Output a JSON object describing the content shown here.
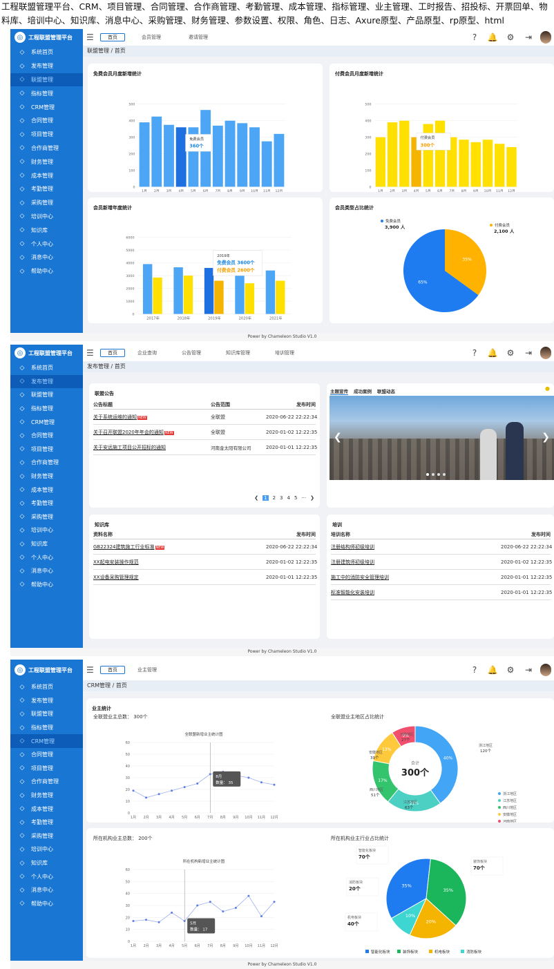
{
  "caption": "工程联盟管理平台、CRM、项目管理、合同管理、合作商管理、考勤管理、成本管理、指标管理、业主管理、工时报告、招投标、开票回单、物料库、培训中心、知识库、消息中心、采购管理、财务管理、参数设置、权限、角色、日志、Axure原型、产品原型、rp原型、html",
  "app_title": "工程联盟管理平台",
  "home_tab": "首页",
  "footer": "Power by Chameleon Studio V1.0",
  "colors": {
    "sidebar": "#1976d2",
    "blue": "#4a9ff5",
    "yellow": "#ffe000",
    "orange": "#ffb300"
  },
  "menu": [
    {
      "icon": "home-icon",
      "label": "系统首页"
    },
    {
      "icon": "publish-icon",
      "label": "发布管理"
    },
    {
      "icon": "alliance-icon",
      "label": "联盟管理"
    },
    {
      "icon": "indicator-icon",
      "label": "指标管理"
    },
    {
      "icon": "crm-icon",
      "label": "CRM管理"
    },
    {
      "icon": "contract-icon",
      "label": "合同管理"
    },
    {
      "icon": "project-icon",
      "label": "项目管理"
    },
    {
      "icon": "partner-icon",
      "label": "合作商管理"
    },
    {
      "icon": "finance-icon",
      "label": "财务管理"
    },
    {
      "icon": "cost-icon",
      "label": "成本管理"
    },
    {
      "icon": "attendance-icon",
      "label": "考勤管理"
    },
    {
      "icon": "purchase-icon",
      "label": "采购管理"
    },
    {
      "icon": "training-icon",
      "label": "培训中心"
    },
    {
      "icon": "knowledge-icon",
      "label": "知识库"
    },
    {
      "icon": "user-icon",
      "label": "个人中心"
    },
    {
      "icon": "message-icon",
      "label": "消息中心"
    },
    {
      "icon": "help-icon",
      "label": "帮助中心"
    }
  ],
  "s1": {
    "tabs": [
      "会员管理",
      "邀请管理"
    ],
    "crumb": "联盟管理 / 首页",
    "c1": {
      "title": "免费会员月度新增统计",
      "tip_label": "免费会员",
      "tip_value": "360个"
    },
    "c2": {
      "title": "付费会员月度新增统计",
      "tip_label": "付费会员",
      "tip_value": "300个"
    },
    "c3": {
      "title": "会员新增年度统计",
      "tip_year": "2019年",
      "tip_free": "免费会员  3600个",
      "tip_paid": "付费会员  2600个"
    },
    "c4": {
      "title": "会员类型占比统计",
      "free_label": "免费会员",
      "free_value": "3,900 人",
      "paid_label": "付费会员",
      "paid_value": "2,100 人"
    }
  },
  "s2": {
    "tabs": [
      "企业查询",
      "公告管理",
      "知识库管理",
      "培训管理"
    ],
    "crumb": "发布管理 / 首页",
    "notice": {
      "title": "联盟公告",
      "headers": [
        "公告标题",
        "公告范围",
        "发布时间"
      ],
      "rows": [
        [
          "关于系统运维的通知",
          "全联盟",
          "2020-06-22 22:22:34"
        ],
        [
          "关于召开联盟2020年年会的通知",
          "全联盟",
          "2020-01-02 12:22:35"
        ],
        [
          "关于安远施工项目公开招标的通知",
          "河南金太阳有限公司",
          "2020-01-01 12:22:35"
        ]
      ],
      "pages": [
        "1",
        "2",
        "3",
        "4",
        "5",
        "···"
      ]
    },
    "banner_tabs": [
      "主题宣传",
      "成功案例",
      "联盟动态"
    ],
    "knowledge": {
      "title": "知识库",
      "headers": [
        "资料名称",
        "发布时间"
      ],
      "rows": [
        [
          "GB22324建筑施工行业标准",
          "2020-06-22 22:22:34"
        ],
        [
          "XX起电安装操作规范",
          "2020-01-02 12:22:35"
        ],
        [
          "XX设备采购管理规定",
          "2020-01-01 12:22:35"
        ]
      ]
    },
    "training": {
      "title": "培训",
      "headers": [
        "培训名称",
        "发布时间"
      ],
      "rows": [
        [
          "注册结构师初级培训",
          "2020-06-22 22:22:34"
        ],
        [
          "注册建筑师初级培训",
          "2020-01-02 12:22:35"
        ],
        [
          "施工中的消防安全管理培训",
          "2020-01-01 12:22:35"
        ],
        [
          "标准智能化安装培训",
          "2020-01-01 12:22:35"
        ]
      ]
    }
  },
  "s3": {
    "tabs": [
      "业主管理"
    ],
    "crumb": "CRM管理 / 首页",
    "title": "业主统计",
    "owners_total": "全联盟业主总数：   300个",
    "line1_title": "全联盟新增业主统计图",
    "tip1": [
      "8月",
      "数量：  35"
    ],
    "region_title": "全联盟业主地区占比统计",
    "donut_center_label": "合计",
    "donut_center_value": "300个",
    "org_total": "所在机构业主总数：   200个",
    "line2_title": "所在机构新增业主统计图",
    "tip2": [
      "5月",
      "数量：  17"
    ],
    "industry_title": "所在机构业主行业占比统计"
  },
  "chart_data": [
    {
      "type": "bar",
      "title": "免费会员月度新增统计",
      "categories": [
        "1月",
        "2月",
        "3月",
        "4月",
        "5月",
        "6月",
        "7月",
        "8月",
        "9月",
        "10月",
        "11月",
        "12月"
      ],
      "values": [
        390,
        425,
        375,
        360,
        360,
        465,
        370,
        400,
        385,
        360,
        275,
        320
      ],
      "ylim": [
        0,
        500
      ],
      "yticks": [
        0,
        100,
        200,
        300,
        400,
        500
      ]
    },
    {
      "type": "bar",
      "title": "付费会员月度新增统计",
      "categories": [
        "1月",
        "2月",
        "3月",
        "4月",
        "5月",
        "6月",
        "7月",
        "8月",
        "9月",
        "10月",
        "11月",
        "12月"
      ],
      "values": [
        300,
        390,
        400,
        300,
        380,
        400,
        300,
        285,
        270,
        285,
        260,
        240
      ],
      "ylim": [
        0,
        500
      ],
      "yticks": [
        0,
        100,
        200,
        300,
        400,
        500
      ]
    },
    {
      "type": "bar",
      "title": "会员新增年度统计",
      "categories": [
        "2017年",
        "2018年",
        "2019年",
        "2020年",
        "2021年"
      ],
      "series": [
        {
          "name": "免费会员",
          "values": [
            3900,
            3650,
            3600,
            3550,
            3400
          ]
        },
        {
          "name": "付费会员",
          "values": [
            2850,
            3000,
            2600,
            2400,
            2600
          ]
        }
      ],
      "ylim": [
        0,
        6000
      ],
      "yticks": [
        0,
        1000,
        2000,
        3000,
        4000,
        5000,
        6000
      ]
    },
    {
      "type": "pie",
      "title": "会员类型占比统计",
      "labels": [
        "免费会员",
        "付费会员"
      ],
      "values": [
        65,
        35
      ]
    },
    {
      "type": "line",
      "title": "全联盟新增业主统计图",
      "categories": [
        "1月",
        "2月",
        "3月",
        "4月",
        "5月",
        "6月",
        "7月",
        "8月",
        "9月",
        "10月",
        "11月",
        "12月"
      ],
      "values": [
        19,
        13,
        16,
        19,
        22,
        25,
        33,
        35,
        32,
        30,
        26,
        24
      ],
      "ylim": [
        0,
        60
      ],
      "yticks": [
        0,
        10,
        20,
        30,
        40,
        50,
        60
      ]
    },
    {
      "type": "pie",
      "title": "全联盟业主地区占比统计",
      "labels": [
        "浙江地区",
        "江苏地区",
        "西川地区",
        "安徽地区",
        "河南地区"
      ],
      "counts": [
        120,
        63,
        51,
        39,
        27
      ],
      "values": [
        40,
        21,
        17,
        13,
        9
      ],
      "colors": [
        "#42a5f5",
        "#4dd0c4",
        "#34c46e",
        "#ffc93c",
        "#f0506e"
      ]
    },
    {
      "type": "line",
      "title": "所在机构新增业主统计图",
      "categories": [
        "1月",
        "2月",
        "3月",
        "4月",
        "5月",
        "6月",
        "7月",
        "8月",
        "9月",
        "10月",
        "11月",
        "12月"
      ],
      "values": [
        17,
        18,
        16,
        24,
        17,
        30,
        33,
        25,
        28,
        38,
        21,
        33
      ],
      "ylim": [
        0,
        60
      ],
      "yticks": [
        0,
        10,
        20,
        30,
        40,
        50,
        60
      ]
    },
    {
      "type": "pie",
      "title": "所在机构业主行业占比统计",
      "labels": [
        "智能化板块",
        "装饰板块",
        "机电板块",
        "消防板块"
      ],
      "counts": [
        70,
        70,
        40,
        20
      ],
      "values": [
        35,
        35,
        20,
        10
      ],
      "colors": [
        "#1e7cf0",
        "#1bb55c",
        "#f5b400",
        "#3dd6d0"
      ]
    }
  ]
}
